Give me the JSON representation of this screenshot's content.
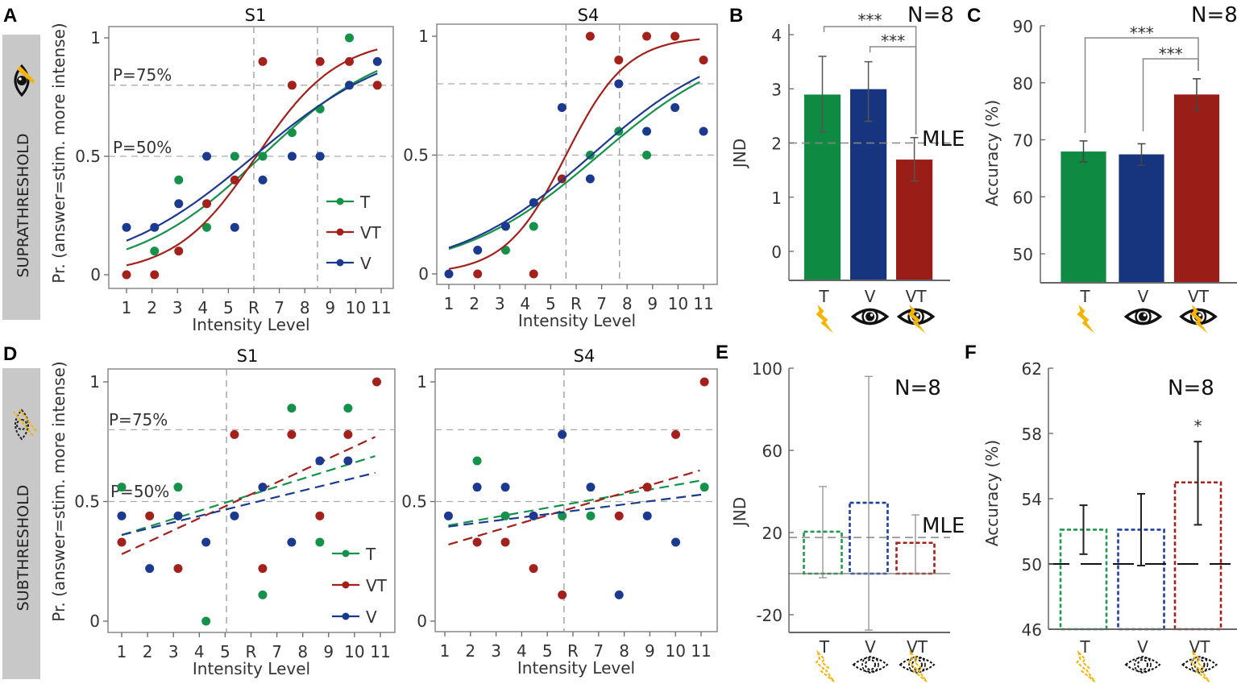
{
  "figure": {
    "panel_letters": [
      "A",
      "B",
      "C",
      "D",
      "E",
      "F"
    ],
    "row_labels": [
      "SUPRATHRESHOLD",
      "SUBTHRESHOLD"
    ],
    "row_ylabel": "Pr. (answer=stim. more intense)",
    "threshold_labels": [
      "P=75%",
      "P=50%"
    ],
    "icon_colors": {
      "lightning": "#f5b400",
      "eye": "#111111"
    }
  },
  "chart_data": [
    {
      "type": "scatter",
      "panel": "A",
      "title": "S1",
      "xlabel": "Intensity Level",
      "xticks": [
        "1",
        "2",
        "3",
        "4",
        "5",
        "R",
        "7",
        "8",
        "9",
        "10",
        "11"
      ],
      "yticks": [
        "0",
        "0.5",
        "1"
      ],
      "ylim": [
        -0.05,
        1.08
      ],
      "xlim": [
        0.7,
        11.5
      ],
      "hlines": [
        0.8,
        0.5
      ],
      "vlines": [
        6.0,
        8.5
      ],
      "show_threshold_labels": true,
      "legend": [
        "T",
        "VT",
        "V"
      ],
      "legend_position": "bottom-right",
      "series": [
        {
          "name": "T",
          "color": "#14924a",
          "fit": {
            "type": "logistic",
            "mu": 6.3,
            "sigma": 2.5,
            "style": "solid"
          },
          "points": [
            [
              2.1,
              0.1
            ],
            [
              3.05,
              0.4
            ],
            [
              4.15,
              0.2
            ],
            [
              5.25,
              0.5
            ],
            [
              6.35,
              0.5
            ],
            [
              7.5,
              0.6
            ],
            [
              8.6,
              0.7
            ],
            [
              9.75,
              1.0
            ]
          ]
        },
        {
          "name": "VT",
          "color": "#a3201b",
          "fit": {
            "type": "logistic",
            "mu": 6.1,
            "sigma": 1.6,
            "style": "solid"
          },
          "points": [
            [
              1,
              0
            ],
            [
              2.1,
              0
            ],
            [
              3.05,
              0.1
            ],
            [
              4.15,
              0.3
            ],
            [
              5.25,
              0.4
            ],
            [
              6.35,
              0.9
            ],
            [
              7.5,
              0.8
            ],
            [
              8.6,
              0.9
            ],
            [
              9.75,
              0.9
            ],
            [
              10.85,
              0.8
            ]
          ]
        },
        {
          "name": "V",
          "color": "#1b3a8f",
          "fit": {
            "type": "logistic",
            "mu": 6.0,
            "sigma": 2.8,
            "style": "solid"
          },
          "points": [
            [
              1,
              0.2
            ],
            [
              2.1,
              0.2
            ],
            [
              3.05,
              0.3
            ],
            [
              4.15,
              0.5
            ],
            [
              5.25,
              0.2
            ],
            [
              6.35,
              0.4
            ],
            [
              7.5,
              0.5
            ],
            [
              8.6,
              0.5
            ],
            [
              9.75,
              0.8
            ],
            [
              10.85,
              0.9
            ]
          ]
        }
      ]
    },
    {
      "type": "scatter",
      "panel": "A",
      "title": "S4",
      "xlabel": "Intensity Level",
      "xticks": [
        "1",
        "2",
        "3",
        "4",
        "5",
        "R",
        "7",
        "8",
        "9",
        "10",
        "11"
      ],
      "yticks": [
        "0",
        "0.5",
        "1"
      ],
      "ylim": [
        -0.05,
        1.08
      ],
      "xlim": [
        0.7,
        11.5
      ],
      "hlines": [
        0.8,
        0.5
      ],
      "vlines": [
        5.6,
        7.7
      ],
      "show_threshold_labels": false,
      "series": [
        {
          "name": "T",
          "color": "#14924a",
          "fit": {
            "type": "logistic",
            "mu": 6.9,
            "sigma": 2.75,
            "style": "solid"
          },
          "points": [
            [
              3.23,
              0.1
            ],
            [
              4.33,
              0.2
            ],
            [
              6.55,
              0.5
            ],
            [
              7.67,
              0.6
            ],
            [
              8.77,
              0.5
            ]
          ]
        },
        {
          "name": "VT",
          "color": "#a3201b",
          "fit": {
            "type": "logistic",
            "mu": 5.6,
            "sigma": 1.2,
            "style": "solid"
          },
          "points": [
            [
              2.13,
              0
            ],
            [
              4.33,
              0
            ],
            [
              5.44,
              0.4
            ],
            [
              6.55,
              1.0
            ],
            [
              7.67,
              0.9
            ],
            [
              8.77,
              1.0
            ],
            [
              9.88,
              1.0
            ],
            [
              11,
              0.9
            ]
          ]
        },
        {
          "name": "V",
          "color": "#1b3a8f",
          "fit": {
            "type": "logistic",
            "mu": 6.6,
            "sigma": 2.68,
            "style": "solid"
          },
          "points": [
            [
              1,
              0
            ],
            [
              2.13,
              0.1
            ],
            [
              3.23,
              0.2
            ],
            [
              4.33,
              0.3
            ],
            [
              5.44,
              0.7
            ],
            [
              6.55,
              0.4
            ],
            [
              7.67,
              0.8
            ],
            [
              8.77,
              0.6
            ],
            [
              9.88,
              0.7
            ],
            [
              11,
              0.6
            ]
          ]
        }
      ]
    },
    {
      "type": "scatter",
      "panel": "D",
      "title": "S1",
      "xlabel": "Intensity Level",
      "xticks": [
        "1",
        "2",
        "3",
        "4",
        "5",
        "R",
        "7",
        "8",
        "9",
        "10",
        "11"
      ],
      "yticks": [
        "0",
        "0.5",
        "1"
      ],
      "ylim": [
        -0.05,
        1.08
      ],
      "xlim": [
        0.6,
        11.5
      ],
      "hlines": [
        0.8,
        0.5
      ],
      "vlines": [
        5.05
      ],
      "show_threshold_labels": true,
      "legend": [
        "T",
        "VT",
        "V"
      ],
      "legend_position": "bottom-right",
      "series": [
        {
          "name": "T",
          "color": "#14924a",
          "fit": {
            "type": "linear",
            "x": [
              1,
              10.8
            ],
            "y": [
              0.36,
              0.69
            ],
            "style": "dashed"
          },
          "points": [
            [
              1,
              0.56
            ],
            [
              3.18,
              0.56
            ],
            [
              4.26,
              0
            ],
            [
              6.45,
              0.11
            ],
            [
              7.57,
              0.89
            ],
            [
              8.66,
              0.33
            ],
            [
              9.75,
              0.89
            ]
          ]
        },
        {
          "name": "VT",
          "color": "#a3201b",
          "fit": {
            "type": "linear",
            "x": [
              1,
              10.8
            ],
            "y": [
              0.28,
              0.77
            ],
            "style": "dashed"
          },
          "points": [
            [
              1,
              0.33
            ],
            [
              2.08,
              0.44
            ],
            [
              3.18,
              0.22
            ],
            [
              5.36,
              0.78
            ],
            [
              6.45,
              0.22
            ],
            [
              7.57,
              0.78
            ],
            [
              8.66,
              0.44
            ],
            [
              9.75,
              0.78
            ],
            [
              10.86,
              1.0
            ]
          ]
        },
        {
          "name": "V",
          "color": "#1b3a8f",
          "fit": {
            "type": "linear",
            "x": [
              1,
              10.8
            ],
            "y": [
              0.36,
              0.62
            ],
            "style": "dashed"
          },
          "points": [
            [
              1,
              0.44
            ],
            [
              2.08,
              0.22
            ],
            [
              3.18,
              0.44
            ],
            [
              4.26,
              0.33
            ],
            [
              5.36,
              0.44
            ],
            [
              6.45,
              0.56
            ],
            [
              7.57,
              0.33
            ],
            [
              8.66,
              0.67
            ],
            [
              9.75,
              0.67
            ]
          ]
        }
      ]
    },
    {
      "type": "scatter",
      "panel": "D",
      "title": "S4",
      "xlabel": "Intensity Level",
      "xticks": [
        "1",
        "2",
        "3",
        "4",
        "5",
        "R",
        "7",
        "8",
        "9",
        "10",
        "11"
      ],
      "yticks": [
        "0",
        "0.5",
        "1"
      ],
      "ylim": [
        -0.05,
        1.08
      ],
      "xlim": [
        0.6,
        11.7
      ],
      "hlines": [
        0.8,
        0.5
      ],
      "vlines": [
        5.65
      ],
      "show_threshold_labels": false,
      "series": [
        {
          "name": "T",
          "color": "#14924a",
          "fit": {
            "type": "linear",
            "x": [
              1.14,
              11.1
            ],
            "y": [
              0.4,
              0.59
            ],
            "style": "dashed"
          },
          "points": [
            [
              2.26,
              0.67
            ],
            [
              3.36,
              0.44
            ],
            [
              5.58,
              0.44
            ],
            [
              6.69,
              0.44
            ],
            [
              11.13,
              0.56
            ]
          ]
        },
        {
          "name": "VT",
          "color": "#a3201b",
          "fit": {
            "type": "linear",
            "x": [
              1.14,
              10.95
            ],
            "y": [
              0.32,
              0.63
            ],
            "style": "dashed"
          },
          "points": [
            [
              2.26,
              0.33
            ],
            [
              3.36,
              0.33
            ],
            [
              4.46,
              0.22
            ],
            [
              5.58,
              0.11
            ],
            [
              7.8,
              0.44
            ],
            [
              8.9,
              0.56
            ],
            [
              10.01,
              0.78
            ],
            [
              11.13,
              1.0
            ]
          ]
        },
        {
          "name": "V",
          "color": "#1b3a8f",
          "fit": {
            "type": "linear",
            "x": [
              1.14,
              11.1
            ],
            "y": [
              0.395,
              0.53
            ],
            "style": "dashed"
          },
          "points": [
            [
              1.14,
              0.44
            ],
            [
              2.26,
              0.56
            ],
            [
              3.36,
              0.56
            ],
            [
              4.46,
              0.44
            ],
            [
              5.58,
              0.78
            ],
            [
              6.69,
              0.56
            ],
            [
              7.8,
              0.11
            ],
            [
              8.9,
              0.44
            ],
            [
              10.01,
              0.33
            ]
          ]
        }
      ]
    },
    {
      "type": "bar",
      "panel": "B",
      "ylabel": "JND",
      "categories": [
        "T",
        "V",
        "VT"
      ],
      "values": [
        2.9,
        3.0,
        1.7
      ],
      "error": [
        [
          2.2,
          3.6
        ],
        [
          2.4,
          3.5
        ],
        [
          1.3,
          2.1
        ]
      ],
      "yticks": [
        "0",
        "1",
        "2",
        "3",
        "4"
      ],
      "ylim": [
        -0.54,
        4.05
      ],
      "fill": "solid",
      "colors": [
        "#0e8a43",
        "#17347f",
        "#9b1d18"
      ],
      "reference_line": {
        "label": "MLE",
        "value": 2.0
      },
      "n_label": "N=8",
      "significance": [
        {
          "pair": [
            "T",
            "VT"
          ],
          "label": "***"
        },
        {
          "pair": [
            "V",
            "VT"
          ],
          "label": "***"
        }
      ],
      "icons": [
        "lightning",
        "eye",
        "eye-lightning"
      ]
    },
    {
      "type": "bar",
      "panel": "C",
      "ylabel": "Accuracy (%)",
      "categories": [
        "T",
        "V",
        "VT"
      ],
      "values": [
        68.0,
        67.5,
        78.0
      ],
      "error": [
        [
          66.1,
          69.8
        ],
        [
          65.5,
          69.3
        ],
        [
          75.2,
          80.7
        ]
      ],
      "yticks": [
        "50",
        "60",
        "70",
        "80",
        "90"
      ],
      "ylim": [
        45,
        90
      ],
      "fill": "solid",
      "colors": [
        "#0e8a43",
        "#17347f",
        "#9b1d18"
      ],
      "n_label": "N=8",
      "significance": [
        {
          "pair": [
            "T",
            "VT"
          ],
          "label": "***"
        },
        {
          "pair": [
            "V",
            "VT"
          ],
          "label": "***"
        }
      ],
      "icons": [
        "lightning",
        "eye",
        "eye-lightning"
      ]
    },
    {
      "type": "bar",
      "panel": "E",
      "ylabel": "JND",
      "categories": [
        "T",
        "V",
        "VT"
      ],
      "values": [
        20.4,
        34.5,
        15.0
      ],
      "error": [
        [
          -2,
          42.4
        ],
        [
          -27.5,
          96
        ],
        [
          0,
          28.6
        ]
      ],
      "yticks": [
        "-20",
        "20",
        "60",
        "100"
      ],
      "ylim": [
        -28.6,
        100
      ],
      "fill": "dashed",
      "colors": [
        "#1f9a4c",
        "#1f3fa0",
        "#a3201b"
      ],
      "reference_line": {
        "label": "MLE",
        "value": 17.6
      },
      "n_label": "N=8",
      "icons": [
        "lightning",
        "eye",
        "eye-lightning"
      ]
    },
    {
      "type": "bar",
      "panel": "F",
      "ylabel": "Accuracy (%)",
      "categories": [
        "T",
        "V",
        "VT"
      ],
      "values": [
        52.1,
        52.1,
        55.0
      ],
      "error": [
        [
          50.6,
          53.6
        ],
        [
          49.9,
          54.3
        ],
        [
          52.4,
          57.5
        ]
      ],
      "yticks": [
        "46",
        "50",
        "54",
        "58",
        "62"
      ],
      "ylim": [
        46,
        62
      ],
      "fill": "dashed",
      "colors": [
        "#1f9a4c",
        "#1f3fa0",
        "#a3201b"
      ],
      "chance_line": 50,
      "n_label": "N=8",
      "significance": [
        {
          "bar": "VT",
          "label": "*"
        }
      ],
      "icons": [
        "lightning",
        "eye",
        "eye-lightning"
      ]
    }
  ]
}
